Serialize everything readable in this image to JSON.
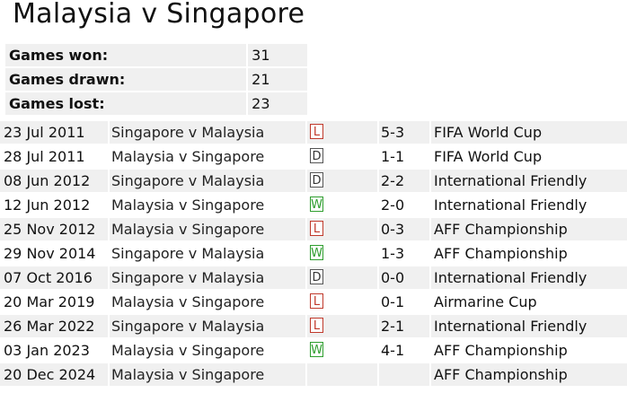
{
  "title": "Malaysia v Singapore",
  "summary": [
    {
      "label": "Games won:",
      "value": "31"
    },
    {
      "label": "Games drawn:",
      "value": "21"
    },
    {
      "label": "Games lost:",
      "value": "23"
    }
  ],
  "results": [
    {
      "date": "23 Jul 2011",
      "match": "Singapore v Malaysia",
      "result": "L",
      "score": "5-3",
      "competition": "FIFA World Cup"
    },
    {
      "date": "28 Jul 2011",
      "match": "Malaysia v Singapore",
      "result": "D",
      "score": "1-1",
      "competition": "FIFA World Cup"
    },
    {
      "date": "08 Jun 2012",
      "match": "Singapore v Malaysia",
      "result": "D",
      "score": "2-2",
      "competition": "International Friendly"
    },
    {
      "date": "12 Jun 2012",
      "match": "Malaysia v Singapore",
      "result": "W",
      "score": "2-0",
      "competition": "International Friendly"
    },
    {
      "date": "25 Nov 2012",
      "match": "Malaysia v Singapore",
      "result": "L",
      "score": "0-3",
      "competition": "AFF Championship"
    },
    {
      "date": "29 Nov 2014",
      "match": "Singapore v Malaysia",
      "result": "W",
      "score": "1-3",
      "competition": "AFF Championship"
    },
    {
      "date": "07 Oct 2016",
      "match": "Singapore v Malaysia",
      "result": "D",
      "score": "0-0",
      "competition": "International Friendly"
    },
    {
      "date": "20 Mar 2019",
      "match": "Malaysia v Singapore",
      "result": "L",
      "score": "0-1",
      "competition": "Airmarine Cup"
    },
    {
      "date": "26 Mar 2022",
      "match": "Singapore v Malaysia",
      "result": "L",
      "score": "2-1",
      "competition": "International Friendly"
    },
    {
      "date": "03 Jan 2023",
      "match": "Malaysia v Singapore",
      "result": "W",
      "score": "4-1",
      "competition": "AFF Championship"
    },
    {
      "date": "20 Dec 2024",
      "match": "Malaysia v Singapore",
      "result": "",
      "score": "",
      "competition": "AFF Championship"
    }
  ],
  "colors": {
    "row_shade": "#f0f0f0",
    "loss": "#c0392b",
    "draw": "#555555",
    "win": "#2e9e2e"
  }
}
